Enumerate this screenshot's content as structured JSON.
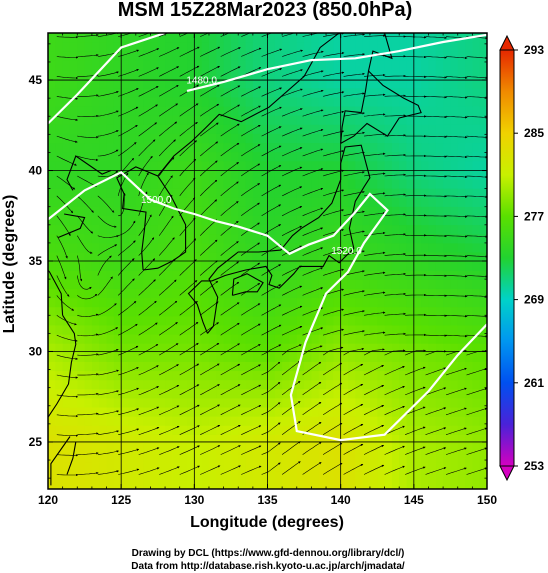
{
  "chart_data": {
    "type": "heatmap",
    "title": "MSM 15Z28Mar2023 (850.0hPa)",
    "xlabel": "Longitude (degrees)",
    "ylabel": "Latitude  (degrees)",
    "xlim": [
      120,
      150
    ],
    "ylim": [
      22.4,
      47.6
    ],
    "xticks": [
      120,
      125,
      130,
      135,
      140,
      145,
      150
    ],
    "xtick_labels": [
      "120",
      "125",
      "130",
      "135",
      "140",
      "145",
      "150"
    ],
    "yticks": [
      25,
      30,
      35,
      40,
      45
    ],
    "ytick_labels": [
      "25",
      "30",
      "35",
      "40",
      "45"
    ],
    "grid": true,
    "colorbar": {
      "min": 253,
      "max": 293,
      "ticks": [
        253,
        261,
        269,
        277,
        285,
        293
      ],
      "tick_labels": [
        "253",
        "261",
        "269",
        "277",
        "285",
        "293"
      ],
      "colors": [
        "#d400c0",
        "#4a22d8",
        "#0050f0",
        "#0096f0",
        "#00d2c8",
        "#22d230",
        "#5ae000",
        "#c8f000",
        "#f0d200",
        "#f08a00",
        "#e62800"
      ],
      "extend": "both",
      "placement": "right"
    },
    "temperature_field": {
      "lon": [
        120,
        125,
        130,
        135,
        140,
        145,
        150
      ],
      "lat": [
        25,
        30,
        35,
        40,
        45
      ],
      "values_K": [
        [
          283,
          282,
          281,
          282,
          283,
          280,
          279
        ],
        [
          280,
          278,
          278,
          277,
          279,
          278,
          277
        ],
        [
          276,
          275,
          276,
          274,
          275,
          274,
          273
        ],
        [
          274,
          274,
          275,
          273,
          273,
          271,
          270
        ],
        [
          275,
          274,
          273,
          271,
          270,
          270,
          271
        ]
      ]
    },
    "contours": [
      {
        "label": "1480.0",
        "lon": 130.5,
        "lat": 44.8
      },
      {
        "label": "1500.0",
        "lon": 127.4,
        "lat": 38.2
      },
      {
        "label": "1520.0",
        "lon": 140.4,
        "lat": 35.4
      }
    ],
    "credits": [
      "Drawing by DCL (https://www.gfd-dennou.org/library/dcl/)",
      "Data from http://database.rish.kyoto-u.ac.jp/arch/jmadata/"
    ]
  }
}
